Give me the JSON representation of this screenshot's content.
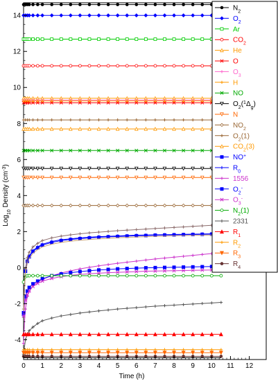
{
  "chart_data": {
    "type": "line",
    "title": "",
    "xlabel": "Time (h)",
    "ylabel": "Log10 Density (cm-3)",
    "xlim": [
      0,
      12.9
    ],
    "ylim": [
      -5.1,
      14.7
    ],
    "x_ticks": [
      0,
      1,
      2,
      3,
      4,
      5,
      6,
      7,
      8,
      9,
      10,
      11,
      12
    ],
    "y_ticks": [
      -4,
      -2,
      0,
      2,
      4,
      6,
      8,
      10,
      12,
      14
    ],
    "grid": false,
    "legend_position": "right",
    "x": [
      0,
      0.05,
      0.1,
      0.2,
      0.3,
      0.5,
      0.75,
      1,
      1.5,
      2,
      2.5,
      3,
      3.5,
      4,
      4.5,
      5,
      5.5,
      6,
      6.5,
      7,
      7.5,
      8,
      8.5,
      9,
      9.5,
      10,
      10.5
    ],
    "series": [
      {
        "key": "n2",
        "label": "N",
        "sub": "2",
        "sup": "",
        "color": "#000000",
        "marker": "dot",
        "constant": 14.6
      },
      {
        "key": "o2",
        "label": "O",
        "sub": "2",
        "sup": "",
        "color": "#0000ff",
        "marker": "diamond",
        "constant": 14.0
      },
      {
        "key": "ar",
        "label": "Ar",
        "sub": "",
        "sup": "",
        "color": "#00cc00",
        "marker": "square-open",
        "constant": 12.68
      },
      {
        "key": "co2",
        "label": "CO",
        "sub": "2",
        "sup": "",
        "color": "#ff0000",
        "marker": "circle-open",
        "constant": 11.2
      },
      {
        "key": "he",
        "label": "He",
        "sub": "",
        "sup": "",
        "color": "#ff9900",
        "marker": "triangle-open",
        "constant": 9.4
      },
      {
        "key": "o",
        "label": "O",
        "sub": "",
        "sup": "",
        "color": "#ff0000",
        "marker": "x",
        "constant": 9.15
      },
      {
        "key": "o3",
        "label": "O",
        "sub": "3",
        "sup": "",
        "color": "#ff66cc",
        "marker": "plus",
        "constant": 9.3
      },
      {
        "key": "h",
        "label": "H",
        "sub": "",
        "sup": "",
        "color": "#ff9900",
        "marker": "plus",
        "constant": 9.25
      },
      {
        "key": "no",
        "label": "NO",
        "sub": "",
        "sup": "",
        "color": "#00aa00",
        "marker": "x",
        "constant": 6.5
      },
      {
        "key": "o2_1dg",
        "label": "O",
        "sub": "2",
        "sup": "",
        "paren": "(1Δg)",
        "color": "#000000",
        "marker": "triangle-down-open",
        "constant": 5.5
      },
      {
        "key": "n",
        "label": "N",
        "sub": "",
        "sup": "",
        "color": "#ff6600",
        "marker": "triangle-down-open",
        "constant": 5.0
      },
      {
        "key": "no2",
        "label": "NO",
        "sub": "2",
        "sup": "",
        "color": "#996633",
        "marker": "diamond-open",
        "constant": 3.45
      },
      {
        "key": "o2_1",
        "label": "O",
        "sub": "2",
        "sup": "",
        "paren": "(1)",
        "color": "#996633",
        "marker": "plus",
        "constant": 8.2
      },
      {
        "key": "co2_3",
        "label": "CO",
        "sub": "2",
        "sup": "",
        "paren": "(3)",
        "color": "#ff9900",
        "marker": "triangle-open",
        "constant": 7.7
      },
      {
        "key": "no_plus",
        "label": "NO",
        "sub": "",
        "sup": "+",
        "color": "#0000ff",
        "marker": "square",
        "y": [
          -2.6,
          -1.2,
          -0.2,
          0.35,
          0.6,
          0.9,
          1.1,
          1.25,
          1.4,
          1.5,
          1.56,
          1.61,
          1.65,
          1.68,
          1.71,
          1.73,
          1.75,
          1.77,
          1.78,
          1.8,
          1.81,
          1.82,
          1.83,
          1.84,
          1.85,
          1.86,
          1.87
        ]
      },
      {
        "key": "r0",
        "label": "R",
        "sub": "0",
        "sup": "",
        "color": "#0000ff",
        "marker": "plus",
        "y": [
          -2.5,
          -1.1,
          -0.1,
          0.4,
          0.65,
          0.95,
          1.15,
          1.3,
          1.45,
          1.55,
          1.6,
          1.65,
          1.69,
          1.72,
          1.74,
          1.76,
          1.78,
          1.8,
          1.81,
          1.82,
          1.83,
          1.84,
          1.85,
          1.86,
          1.87,
          1.88,
          1.89
        ]
      },
      {
        "key": "s1556",
        "label": "1556",
        "sub": "",
        "sup": "",
        "color": "#cc33cc",
        "marker": "plus",
        "y": [
          -4.2,
          -3.0,
          -2.3,
          -1.6,
          -1.3,
          -1.0,
          -0.8,
          -0.65,
          -0.45,
          -0.3,
          -0.18,
          -0.07,
          0.02,
          0.1,
          0.17,
          0.24,
          0.3,
          0.36,
          0.42,
          0.48,
          0.53,
          0.58,
          0.63,
          0.68,
          0.73,
          0.78,
          0.85
        ]
      },
      {
        "key": "o2_minus",
        "label": "O",
        "sub": "2",
        "sup": "-",
        "color": "#0000ff",
        "marker": "square",
        "y": [
          -2.5,
          -1.9,
          -1.6,
          -1.3,
          -1.1,
          -0.9,
          -0.75,
          -0.62,
          -0.45,
          -0.35,
          -0.28,
          -0.22,
          -0.17,
          -0.13,
          -0.1,
          -0.07,
          -0.05,
          -0.03,
          -0.01,
          0.0,
          0.01,
          0.02,
          0.03,
          0.04,
          0.05,
          0.06,
          0.07
        ]
      },
      {
        "key": "o3_minus",
        "label": "O",
        "sub": "3",
        "sup": "-",
        "color": "#cc33cc",
        "marker": "x",
        "y": [
          -2.7,
          -2.1,
          -1.8,
          -1.5,
          -1.3,
          -1.05,
          -0.88,
          -0.75,
          -0.6,
          -0.5,
          -0.43,
          -0.38,
          -0.34,
          -0.31,
          -0.28,
          -0.26,
          -0.24,
          -0.22,
          -0.2,
          -0.19,
          -0.18,
          -0.17,
          -0.16,
          -0.15,
          -0.14,
          -0.13,
          -0.12
        ]
      },
      {
        "key": "n2_1",
        "label": "N",
        "sub": "2",
        "sup": "",
        "paren": "(1)",
        "color": "#00aa00",
        "marker": "circle-open",
        "y": [
          -0.8,
          -0.6,
          -0.5,
          -0.45,
          -0.45,
          -0.45,
          -0.45,
          -0.45,
          -0.45,
          -0.45,
          -0.45,
          -0.45,
          -0.45,
          -0.45,
          -0.45,
          -0.45,
          -0.45,
          -0.45,
          -0.45,
          -0.45,
          -0.45,
          -0.45,
          -0.45,
          -0.45,
          -0.45,
          -0.45,
          -0.45
        ]
      },
      {
        "key": "s2331",
        "label": "2331",
        "sub": "",
        "sup": "",
        "color": "#555555",
        "marker": "plus",
        "y": [
          -4.8,
          -4.4,
          -4.0,
          -3.7,
          -3.5,
          -3.3,
          -3.1,
          -2.95,
          -2.8,
          -2.68,
          -2.6,
          -2.52,
          -2.46,
          -2.4,
          -2.35,
          -2.3,
          -2.26,
          -2.22,
          -2.18,
          -2.14,
          -2.11,
          -2.08,
          -2.05,
          -2.02,
          -1.99,
          -1.96,
          -1.93
        ]
      },
      {
        "key": "r1",
        "label": "R",
        "sub": "1",
        "sup": "",
        "color": "#ff0000",
        "marker": "triangle",
        "constant": -3.7
      },
      {
        "key": "r2",
        "label": "R",
        "sub": "2",
        "sup": "",
        "color": "#ff9900",
        "marker": "plus",
        "constant": -4.55
      },
      {
        "key": "r3",
        "label": "R",
        "sub": "3",
        "sup": "",
        "color": "#ff6600",
        "marker": "triangle-down",
        "constant": -4.72
      },
      {
        "key": "r4",
        "label": "R",
        "sub": "4",
        "sup": "",
        "color": "#663333",
        "marker": "dot",
        "constant": -4.92
      },
      {
        "key": "upper_brown",
        "label": "",
        "sub": "",
        "sup": "",
        "color": "#8b6b6b",
        "marker": "plus",
        "legend": false,
        "y": [
          -2.3,
          -1.0,
          -0.05,
          0.55,
          0.85,
          1.15,
          1.35,
          1.5,
          1.65,
          1.75,
          1.82,
          1.88,
          1.93,
          1.97,
          2.01,
          2.05,
          2.08,
          2.11,
          2.14,
          2.17,
          2.2,
          2.23,
          2.26,
          2.29,
          2.32,
          2.35,
          2.38
        ]
      },
      {
        "key": "lower_brown",
        "label": "",
        "sub": "",
        "sup": "",
        "color": "#c8a070",
        "marker": "none",
        "legend": false,
        "y": [
          -2.4,
          -1.2,
          -0.3,
          0.25,
          0.5,
          0.8,
          1.0,
          1.15,
          1.3,
          1.4,
          1.47,
          1.52,
          1.56,
          1.6,
          1.63,
          1.66,
          1.68,
          1.7,
          1.72,
          1.74,
          1.75,
          1.77,
          1.78,
          1.79,
          1.8,
          1.81,
          1.82
        ]
      },
      {
        "key": "bottom_black",
        "label": "",
        "sub": "",
        "sup": "",
        "color": "#000000",
        "marker": "none",
        "legend": false,
        "constant": -5.0
      }
    ]
  }
}
